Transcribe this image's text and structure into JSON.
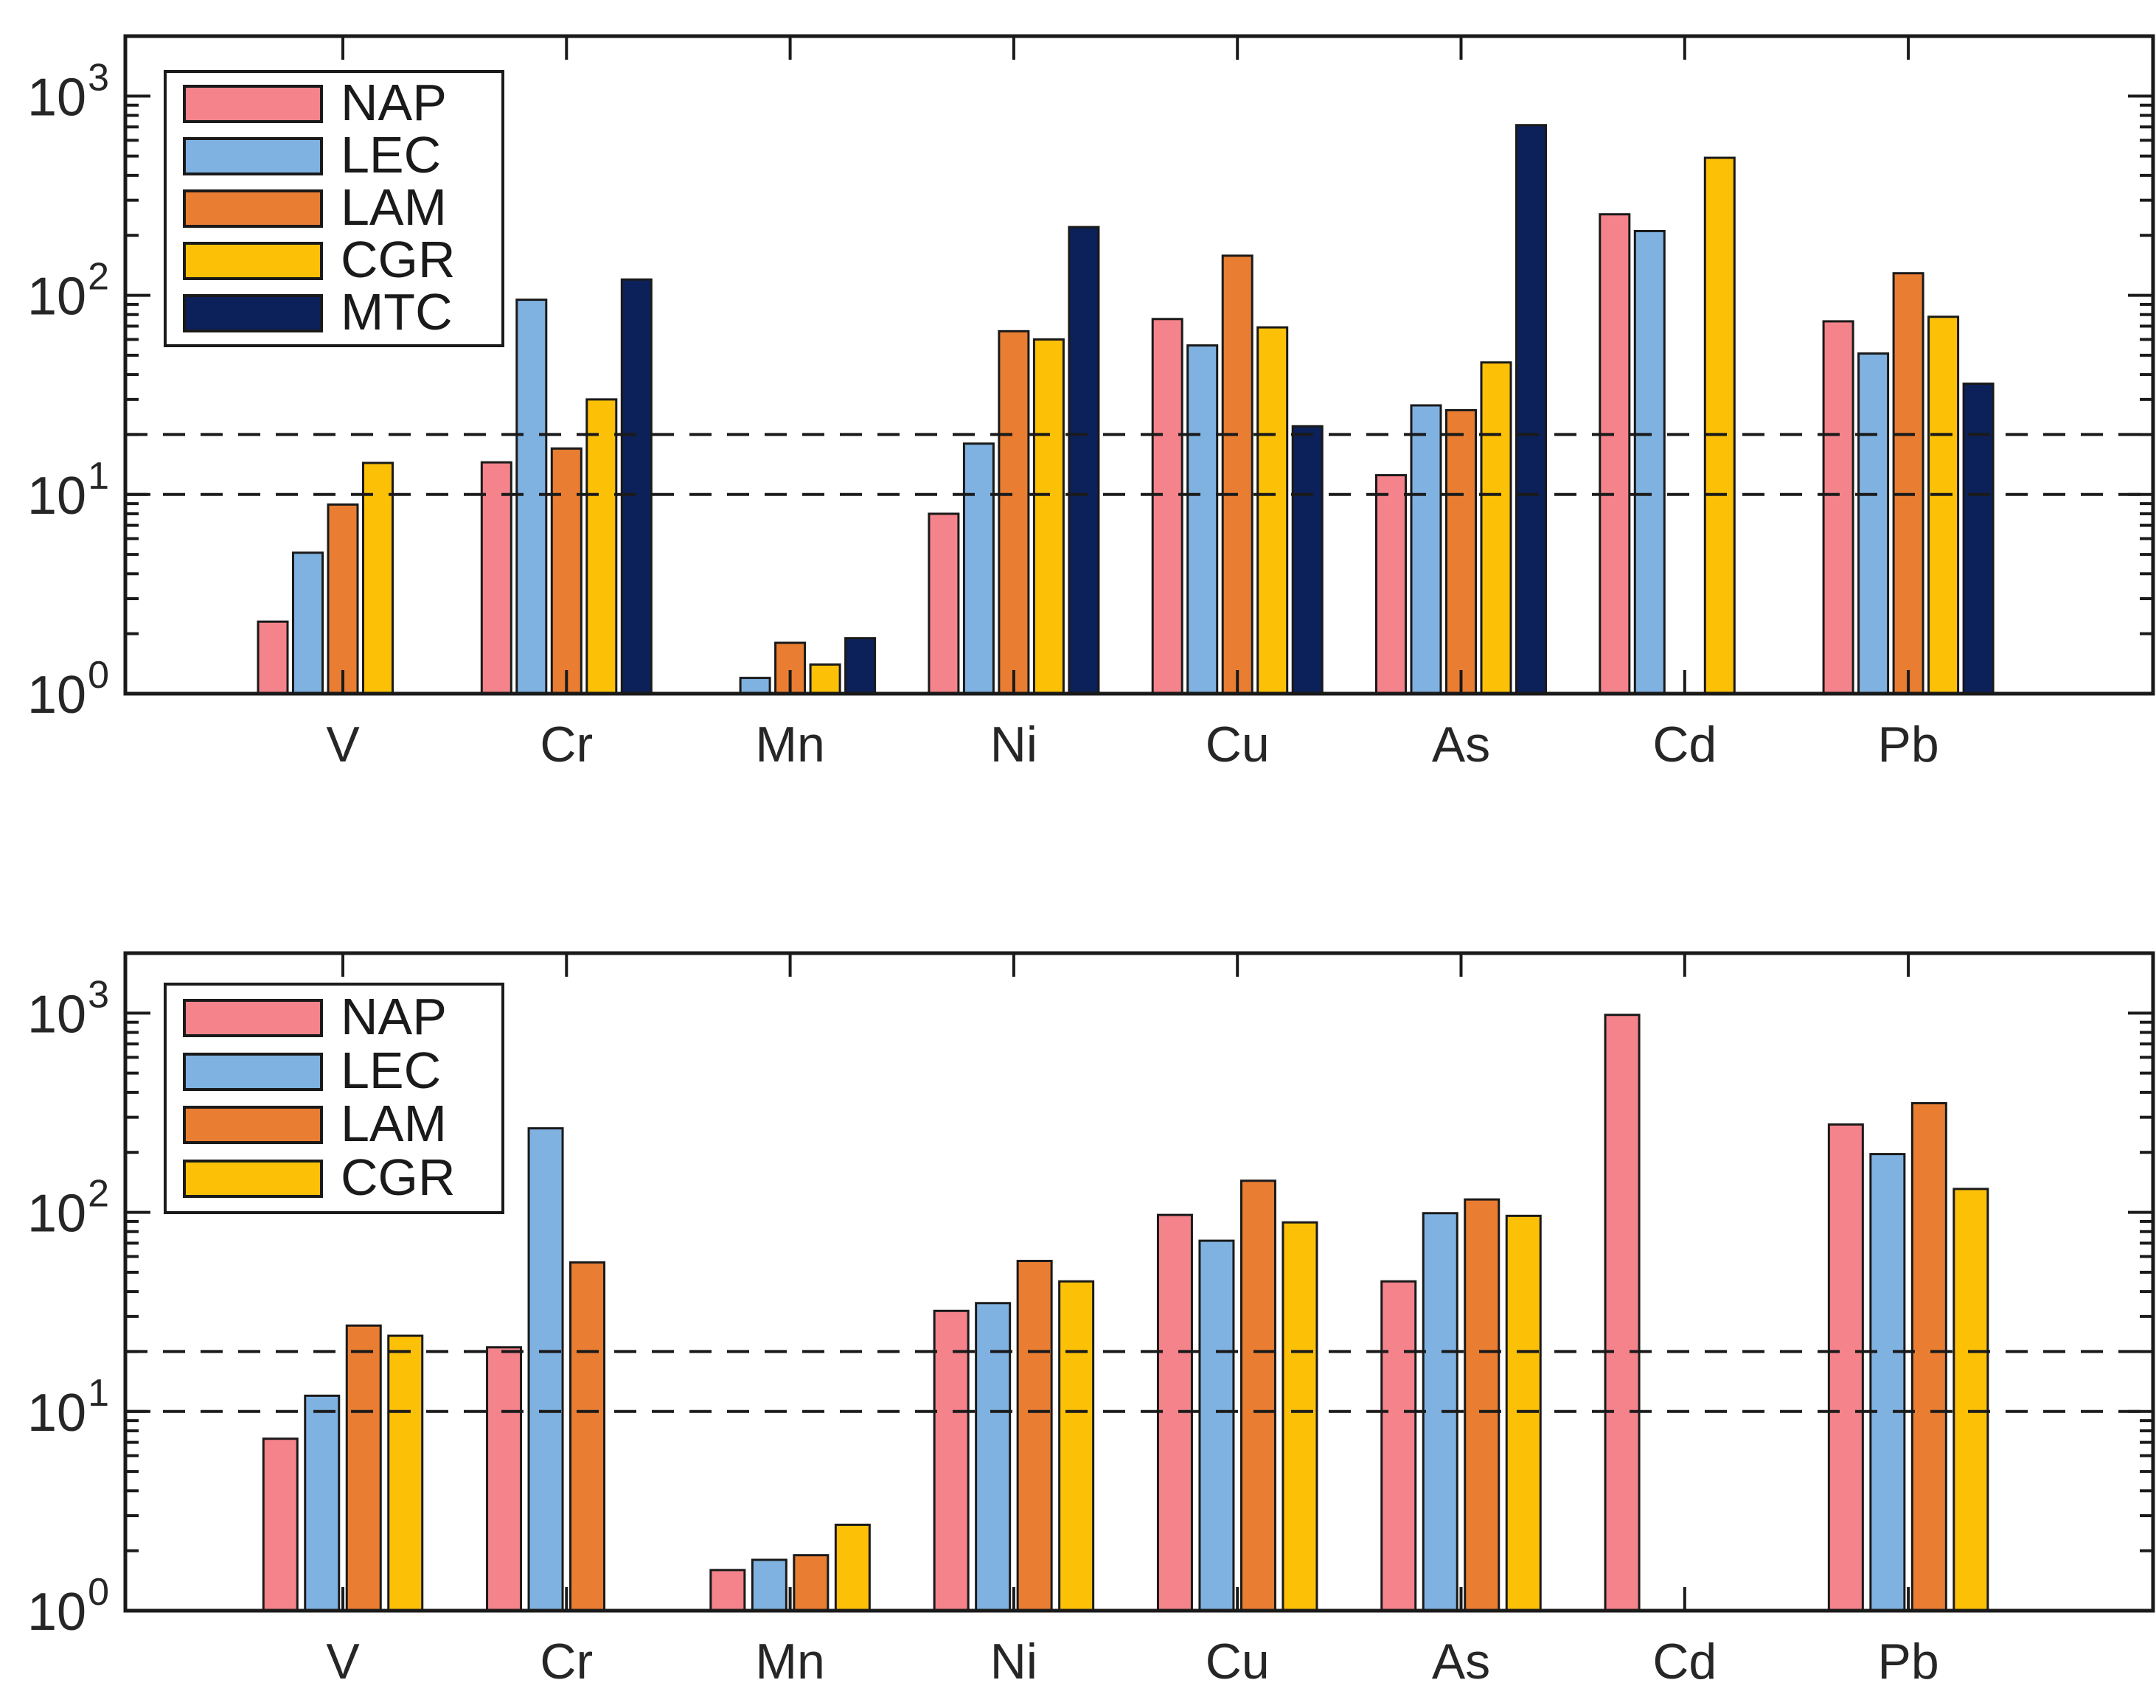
{
  "figure": {
    "background": "#FFFFFF",
    "axis_color": "#1A1A1A",
    "text_color": "#262626",
    "y_tick_base": "10"
  },
  "chart_data": [
    {
      "panel": "top",
      "type": "bar",
      "yscale": "log",
      "ylim": [
        1,
        2000
      ],
      "y_tick_exponents": [
        0,
        1,
        2,
        3
      ],
      "threshold_lines": [
        10,
        20
      ],
      "grid": false,
      "legend_position": "top-left",
      "legend_entries": [
        "NAP",
        "LEC",
        "LAM",
        "CGR",
        "MTC"
      ],
      "categories": [
        "V",
        "Cr",
        "Mn",
        "Ni",
        "Cu",
        "As",
        "Cd",
        "Pb"
      ],
      "series": [
        {
          "name": "NAP",
          "color": "#F4838B",
          "values": [
            2.3,
            14.5,
            null,
            8,
            76,
            12.5,
            255,
            74
          ]
        },
        {
          "name": "LEC",
          "color": "#7FB2E1",
          "values": [
            5.1,
            95,
            1.2,
            18,
            56,
            28,
            210,
            51
          ]
        },
        {
          "name": "LAM",
          "color": "#E97E32",
          "values": [
            8.9,
            17,
            1.8,
            66,
            158,
            26.5,
            null,
            129
          ]
        },
        {
          "name": "CGR",
          "color": "#FCC107",
          "values": [
            14.4,
            30,
            1.4,
            60,
            69,
            46,
            490,
            78
          ]
        },
        {
          "name": "MTC",
          "color": "#0C2159",
          "values": [
            null,
            120,
            1.9,
            220,
            22,
            715,
            null,
            36
          ]
        }
      ]
    },
    {
      "panel": "bottom",
      "type": "bar",
      "yscale": "log",
      "ylim": [
        1,
        2000
      ],
      "y_tick_exponents": [
        0,
        1,
        2,
        3
      ],
      "threshold_lines": [
        10,
        20
      ],
      "grid": false,
      "legend_position": "top-left",
      "legend_entries": [
        "NAP",
        "LEC",
        "LAM",
        "CGR"
      ],
      "categories": [
        "V",
        "Cr",
        "Mn",
        "Ni",
        "Cu",
        "As",
        "Cd",
        "Pb"
      ],
      "series": [
        {
          "name": "NAP",
          "color": "#F4838B",
          "values": [
            7.3,
            21,
            1.6,
            32,
            97,
            45,
            980,
            276
          ]
        },
        {
          "name": "LEC",
          "color": "#7FB2E1",
          "values": [
            12,
            264,
            1.8,
            35,
            72,
            99,
            null,
            196
          ]
        },
        {
          "name": "LAM",
          "color": "#E97E32",
          "values": [
            27,
            56,
            1.9,
            57,
            144,
            116,
            null,
            353
          ]
        },
        {
          "name": "CGR",
          "color": "#FCC107",
          "values": [
            24,
            null,
            2.7,
            45,
            89,
            96,
            null,
            131
          ]
        }
      ]
    }
  ]
}
